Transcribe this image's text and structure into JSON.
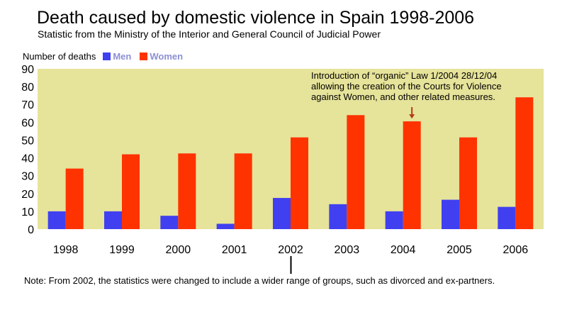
{
  "title": "Death caused by domestic violence in Spain 1998-2006",
  "subtitle": "Statistic from the Ministry of the Interior and General Council of Judicial Power",
  "note": "Note: From 2002, the statistics were changed to include a wider range of groups, such as divorced and ex-partners.",
  "annotation": {
    "lines": [
      "Introduction of “organic” Law 1/2004 28/12/04",
      "allowing the creation of the Courts for Violence",
      "against Women, and other related measures."
    ],
    "target_category": "2004"
  },
  "colors": {
    "men": "#4040f0",
    "women": "#ff3300",
    "plot_background": "#e6e39a",
    "annotation_arrow": "#b33a1a"
  },
  "chart_data": {
    "type": "bar",
    "title": "Death caused by domestic violence in Spain 1998-2006",
    "subtitle": "Statistic from the Ministry of the Interior and General Council of Judicial Power",
    "ylabel": "Number of deaths",
    "xlabel": "",
    "categories": [
      "1998",
      "1999",
      "2000",
      "2001",
      "2002",
      "2003",
      "2004",
      "2005",
      "2006"
    ],
    "series": [
      {
        "name": "Men",
        "values": [
          10,
          10,
          7.5,
          3,
          17.5,
          14,
          10,
          16.5,
          12.5
        ]
      },
      {
        "name": "Women",
        "values": [
          34,
          42,
          42.5,
          42.5,
          51.5,
          64,
          60.5,
          51.5,
          74
        ]
      }
    ],
    "ylim": [
      0,
      90
    ],
    "yticks": [
      0,
      10,
      20,
      30,
      40,
      50,
      60,
      70,
      80,
      90
    ],
    "grid": false,
    "legend_position": "top-left",
    "method_change_marker": "2002"
  }
}
